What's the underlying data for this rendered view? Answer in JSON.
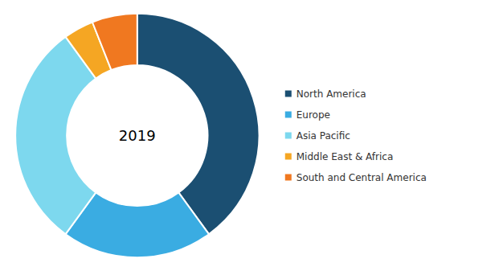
{
  "chart_data": {
    "type": "pie",
    "categories": [
      "North America",
      "Europe",
      "Asia Pacific",
      "Middle East & Africa",
      "South and Central America"
    ],
    "values": [
      40,
      20,
      30,
      4,
      6
    ],
    "colors": [
      "#1b4f72",
      "#3aace2",
      "#7dd8ee",
      "#f5a623",
      "#f07820"
    ],
    "annotations": [
      "2019"
    ],
    "legend": "right"
  }
}
